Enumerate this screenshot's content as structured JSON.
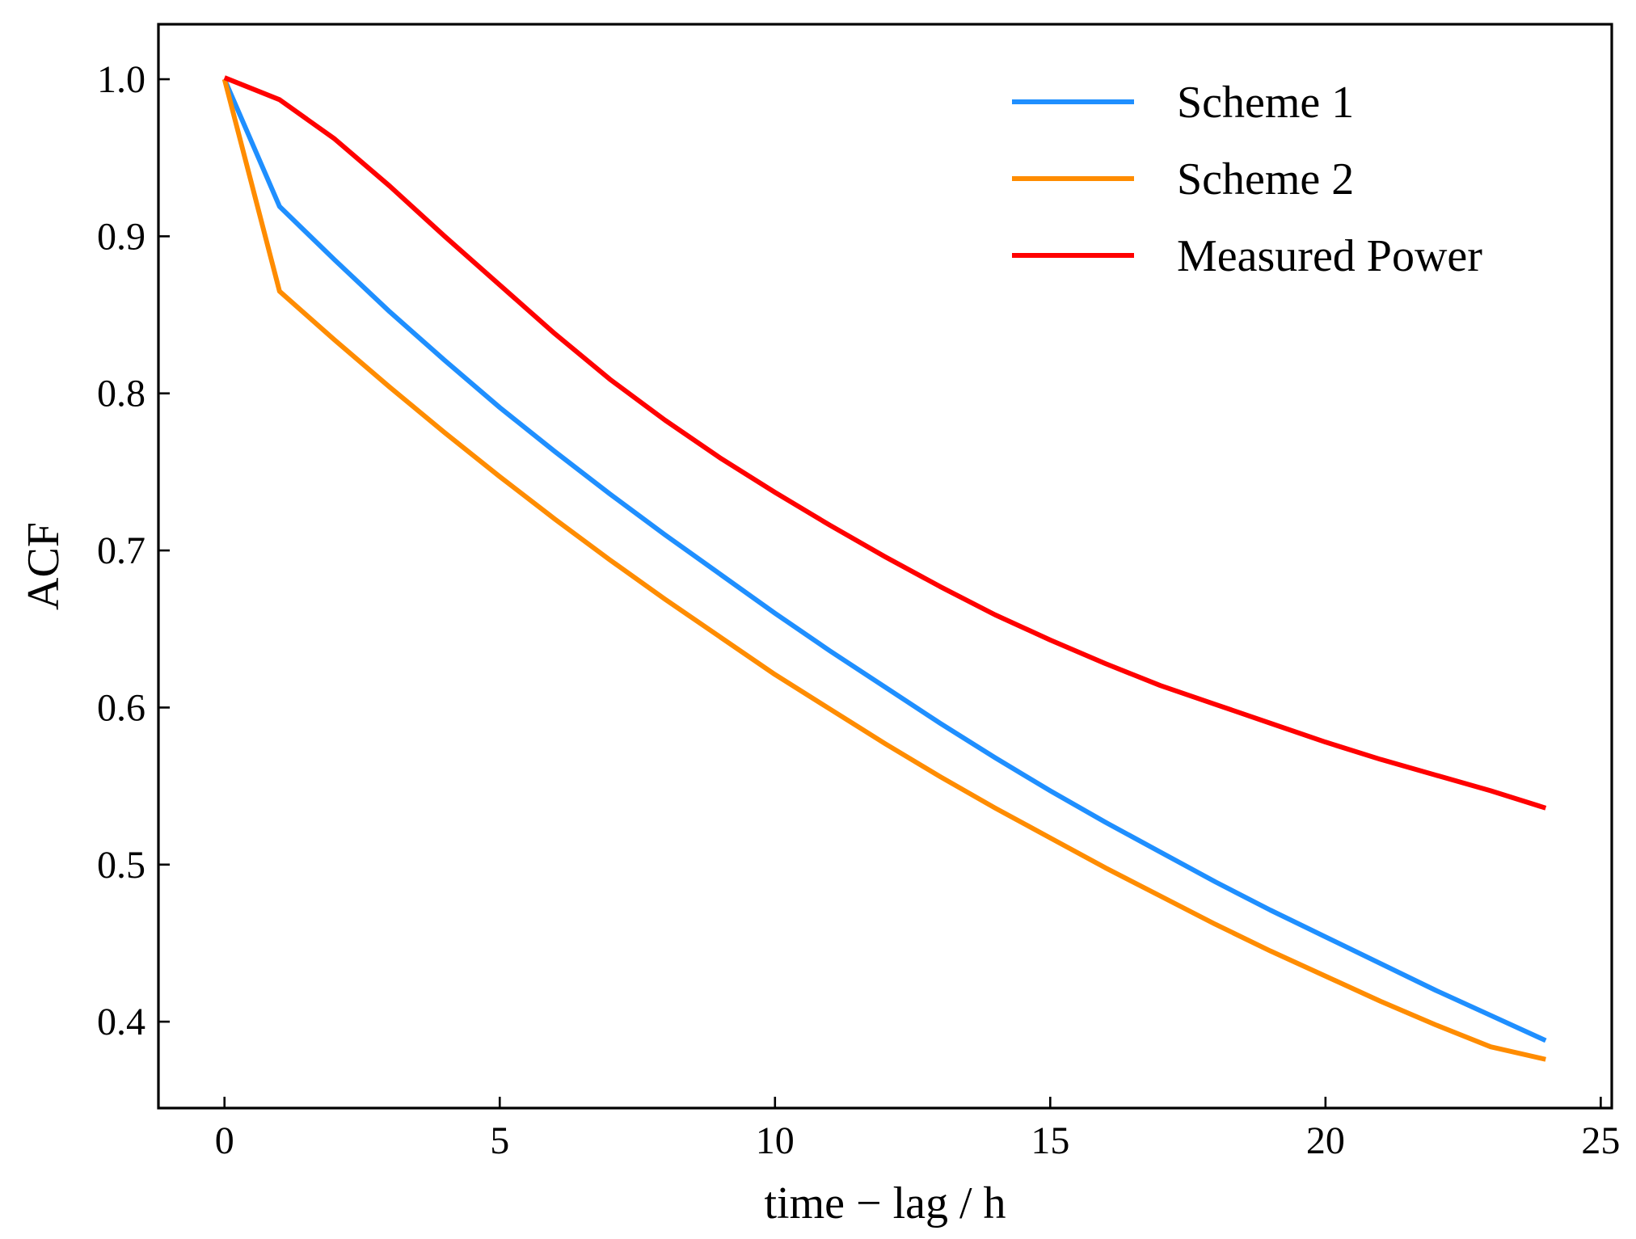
{
  "chart_data": {
    "type": "line",
    "title": "",
    "xlabel": "time − lag / h",
    "ylabel": "ACF",
    "xlim": [
      -1.2,
      25.2
    ],
    "ylim": [
      0.345,
      1.035
    ],
    "xticks": [
      0,
      5,
      10,
      15,
      20,
      25
    ],
    "xtick_labels": [
      "0",
      "5",
      "10",
      "15",
      "20",
      "25"
    ],
    "yticks": [
      0.4,
      0.5,
      0.6,
      0.7,
      0.8,
      0.9,
      1.0
    ],
    "ytick_labels": [
      "0.4",
      "0.5",
      "0.6",
      "0.7",
      "0.8",
      "0.9",
      "1.0"
    ],
    "grid": false,
    "legend_position": "top-right",
    "x": [
      0,
      1,
      2,
      3,
      4,
      5,
      6,
      7,
      8,
      9,
      10,
      11,
      12,
      13,
      14,
      15,
      16,
      17,
      18,
      19,
      20,
      21,
      22,
      23,
      24
    ],
    "series": [
      {
        "name": "Scheme 1",
        "color": "#1f8fff",
        "values": [
          1.0,
          0.919,
          0.885,
          0.852,
          0.821,
          0.791,
          0.763,
          0.736,
          0.71,
          0.685,
          0.66,
          0.636,
          0.613,
          0.59,
          0.568,
          0.547,
          0.527,
          0.508,
          0.489,
          0.471,
          0.454,
          0.437,
          0.42,
          0.404,
          0.388
        ]
      },
      {
        "name": "Scheme 2",
        "color": "#ff8c00",
        "values": [
          1.0,
          0.865,
          0.834,
          0.804,
          0.775,
          0.747,
          0.72,
          0.694,
          0.669,
          0.645,
          0.621,
          0.599,
          0.577,
          0.556,
          0.536,
          0.517,
          0.498,
          0.48,
          0.462,
          0.445,
          0.429,
          0.413,
          0.398,
          0.384,
          0.376
        ]
      },
      {
        "name": "Measured Power",
        "color": "#ff0000",
        "values": [
          1.001,
          0.987,
          0.962,
          0.932,
          0.9,
          0.869,
          0.838,
          0.809,
          0.783,
          0.759,
          0.737,
          0.716,
          0.696,
          0.677,
          0.659,
          0.643,
          0.628,
          0.614,
          0.602,
          0.59,
          0.578,
          0.567,
          0.557,
          0.547,
          0.536
        ]
      }
    ]
  }
}
